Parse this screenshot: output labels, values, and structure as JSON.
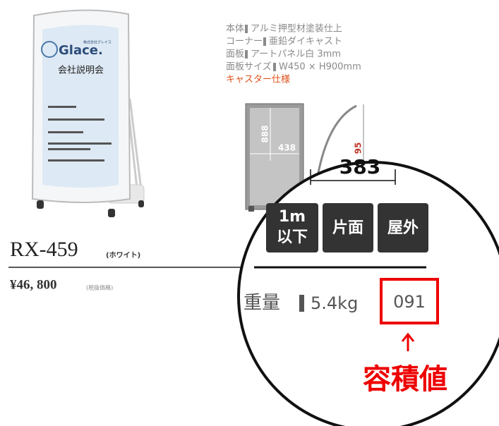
{
  "sign": {
    "logo": "Glace.",
    "company": "株式会社グレイス",
    "heading": "会社説明会"
  },
  "specs": [
    {
      "label": "本体",
      "value": "アルミ押型材塗装仕上"
    },
    {
      "label": "コーナー",
      "value": "亜鉛ダイキャスト"
    },
    {
      "label": "面板",
      "value": "アートパネル白 3mm"
    },
    {
      "label": "面板サイズ",
      "value": "W450 × H900mm"
    }
  ],
  "caster": "キャスター仕様",
  "dimensions": {
    "height": "888",
    "width": "438",
    "side_height": "95",
    "depth": "383"
  },
  "badges": [
    [
      "1m",
      "以下"
    ],
    [
      "片面"
    ],
    [
      "屋外"
    ]
  ],
  "product": {
    "model": "RX-459",
    "color": "(ホワイト)",
    "price": "¥46, 800",
    "price_note": "(税抜価格)"
  },
  "weight": {
    "label": "重量",
    "value": "5.4kg"
  },
  "volume": {
    "value": "091",
    "label": "容積値"
  }
}
